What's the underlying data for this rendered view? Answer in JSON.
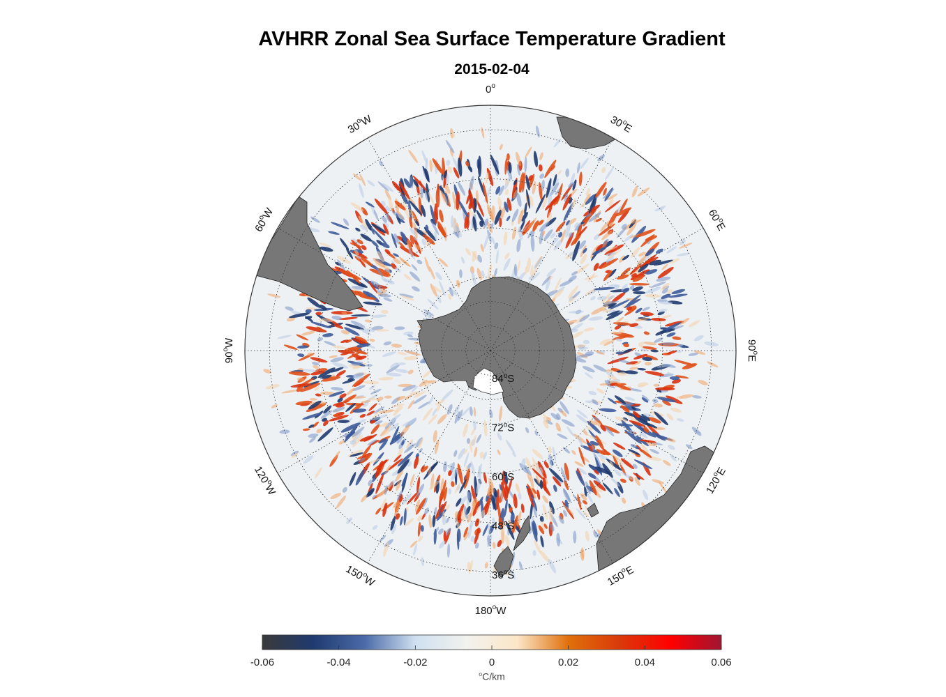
{
  "title": "AVHRR Zonal Sea Surface Temperature Gradient",
  "subtitle": "2015-02-04",
  "map": {
    "projection": "south polar stereographic",
    "longitude_labels": [
      {
        "lon": 0,
        "text": "0",
        "suffix": ""
      },
      {
        "lon": 30,
        "text": "30",
        "suffix": "E"
      },
      {
        "lon": 60,
        "text": "60",
        "suffix": "E"
      },
      {
        "lon": 90,
        "text": "90",
        "suffix": "E"
      },
      {
        "lon": 120,
        "text": "120",
        "suffix": "E"
      },
      {
        "lon": 150,
        "text": "150",
        "suffix": "E"
      },
      {
        "lon": 180,
        "text": "180",
        "suffix": "W"
      },
      {
        "lon": -150,
        "text": "150",
        "suffix": "W"
      },
      {
        "lon": -120,
        "text": "120",
        "suffix": "W"
      },
      {
        "lon": -90,
        "text": "90",
        "suffix": "W"
      },
      {
        "lon": -60,
        "text": "60",
        "suffix": "W"
      },
      {
        "lon": -30,
        "text": "30",
        "suffix": "W"
      }
    ],
    "latitude_labels": [
      {
        "lat": -84,
        "text": "84",
        "suffix": "S"
      },
      {
        "lat": -72,
        "text": "72",
        "suffix": "S"
      },
      {
        "lat": -60,
        "text": "60",
        "suffix": "S"
      },
      {
        "lat": -48,
        "text": "48",
        "suffix": "S"
      },
      {
        "lat": -36,
        "text": "36",
        "suffix": "S"
      }
    ],
    "land_color": "#777777",
    "ocean_background": "#edf1f4"
  },
  "colorbar": {
    "min": -0.06,
    "max": 0.06,
    "ticks": [
      "-0.06",
      "-0.04",
      "-0.02",
      "0",
      "0.02",
      "0.04",
      "0.06"
    ],
    "unit_symbol": "o",
    "unit_text": "C/km",
    "colors": [
      "#3a3a3a",
      "#1f3a6e",
      "#4b6aa8",
      "#cfe0f0",
      "#f2f2ee",
      "#fce6c8",
      "#e0700a",
      "#d93a0a",
      "#ff0000",
      "#a01530"
    ]
  }
}
